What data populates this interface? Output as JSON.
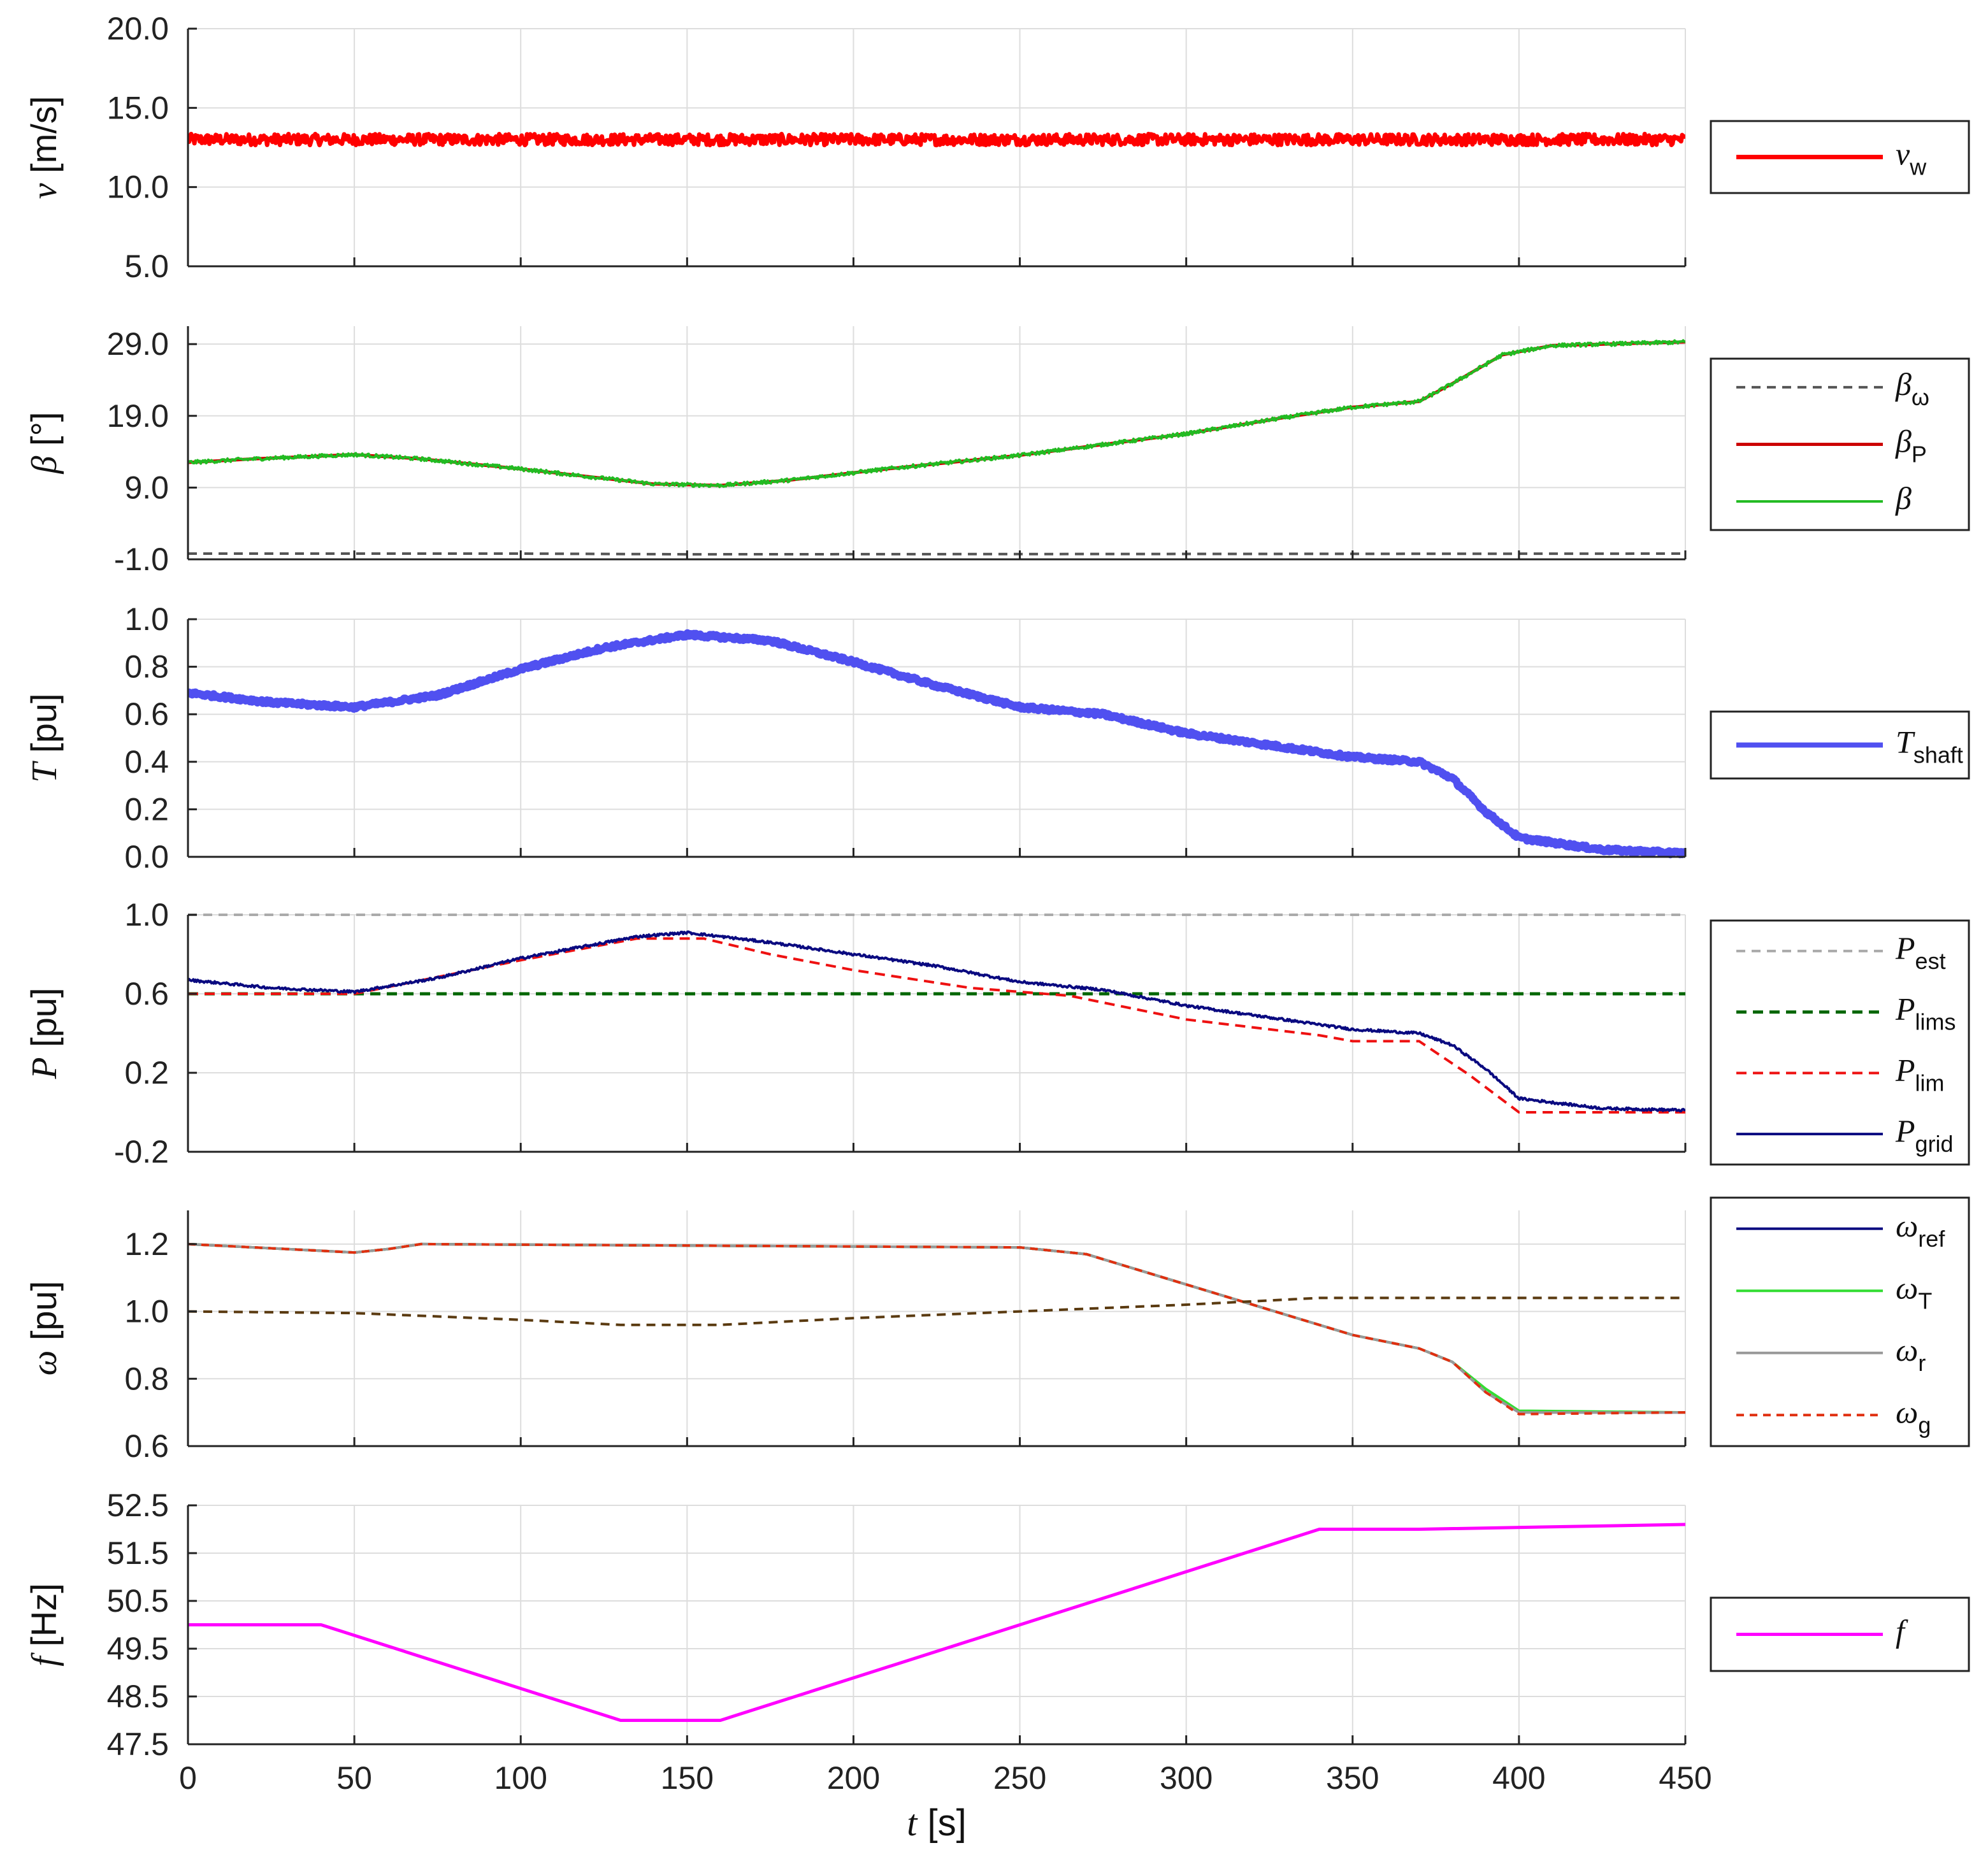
{
  "chart_data": {
    "type": "line",
    "x": {
      "label": "t",
      "unit": "[s]",
      "ticks": [
        0,
        50,
        100,
        150,
        200,
        250,
        300,
        350,
        400,
        450
      ],
      "lim": [
        0,
        450
      ]
    },
    "panels": [
      {
        "id": "wind",
        "ylabel": "v",
        "yunit": "[m/s]",
        "ylim": [
          5.0,
          20.0
        ],
        "yticks": [
          5.0,
          10.0,
          15.0,
          20.0
        ],
        "tick_decimals": 1,
        "series": [
          {
            "name": "v",
            "sub": "w",
            "color": "#ff0000",
            "width": 7,
            "dash": "",
            "noise": 0.35,
            "points": [
              [
                0,
                13.0
              ],
              [
                450,
                13.0
              ]
            ]
          }
        ]
      },
      {
        "id": "pitch",
        "ylabel": "β",
        "yunit": "[°]",
        "ylim": [
          -1.0,
          31.5
        ],
        "yticks": [
          -1.0,
          9.0,
          19.0,
          29.0
        ],
        "tick_decimals": 1,
        "series": [
          {
            "name": "β",
            "sub": "ω",
            "color": "#555555",
            "width": 4,
            "dash": "14,10",
            "noise": 0,
            "points": [
              [
                0,
                -0.2
              ],
              [
                100,
                -0.2
              ],
              [
                150,
                -0.3
              ],
              [
                450,
                -0.2
              ]
            ]
          },
          {
            "name": "β",
            "sub": "P",
            "color": "#cc0000",
            "width": 5,
            "dash": "",
            "noise": 0,
            "points": [
              [
                0,
                12.5
              ],
              [
                20,
                13.0
              ],
              [
                50,
                13.6
              ],
              [
                70,
                13.0
              ],
              [
                100,
                11.6
              ],
              [
                140,
                9.5
              ],
              [
                160,
                9.3
              ],
              [
                180,
                10.0
              ],
              [
                210,
                11.6
              ],
              [
                250,
                13.5
              ],
              [
                300,
                16.5
              ],
              [
                330,
                18.8
              ],
              [
                350,
                20.2
              ],
              [
                370,
                21.0
              ],
              [
                380,
                23.5
              ],
              [
                395,
                27.5
              ],
              [
                410,
                28.8
              ],
              [
                450,
                29.3
              ]
            ]
          },
          {
            "name": "β",
            "sub": "",
            "color": "#22bb22",
            "width": 4,
            "dash": "",
            "noise": 0.25,
            "points": [
              [
                0,
                12.5
              ],
              [
                20,
                13.0
              ],
              [
                50,
                13.6
              ],
              [
                70,
                13.0
              ],
              [
                100,
                11.6
              ],
              [
                140,
                9.5
              ],
              [
                160,
                9.3
              ],
              [
                180,
                10.0
              ],
              [
                210,
                11.6
              ],
              [
                250,
                13.5
              ],
              [
                300,
                16.5
              ],
              [
                330,
                18.8
              ],
              [
                350,
                20.2
              ],
              [
                370,
                21.0
              ],
              [
                380,
                23.5
              ],
              [
                395,
                27.5
              ],
              [
                410,
                28.8
              ],
              [
                450,
                29.3
              ]
            ]
          }
        ]
      },
      {
        "id": "torque",
        "ylabel": "T",
        "yunit": "[pu]",
        "ylim": [
          0.0,
          1.0
        ],
        "yticks": [
          0.0,
          0.2,
          0.4,
          0.6,
          0.8,
          1.0
        ],
        "tick_decimals": 1,
        "series": [
          {
            "name": "T",
            "sub": "shaft",
            "color": "#5050f0",
            "width": 12,
            "dash": "",
            "noise": 0.008,
            "points": [
              [
                0,
                0.69
              ],
              [
                25,
                0.65
              ],
              [
                50,
                0.63
              ],
              [
                75,
                0.68
              ],
              [
                100,
                0.79
              ],
              [
                125,
                0.88
              ],
              [
                150,
                0.935
              ],
              [
                175,
                0.91
              ],
              [
                200,
                0.82
              ],
              [
                225,
                0.72
              ],
              [
                250,
                0.63
              ],
              [
                275,
                0.6
              ],
              [
                300,
                0.52
              ],
              [
                325,
                0.47
              ],
              [
                350,
                0.42
              ],
              [
                370,
                0.4
              ],
              [
                380,
                0.33
              ],
              [
                390,
                0.19
              ],
              [
                400,
                0.08
              ],
              [
                425,
                0.03
              ],
              [
                450,
                0.015
              ]
            ]
          }
        ]
      },
      {
        "id": "power",
        "ylabel": "P",
        "yunit": "[pu]",
        "ylim": [
          -0.2,
          1.0
        ],
        "yticks": [
          -0.2,
          0.2,
          0.6,
          1.0
        ],
        "tick_decimals": 1,
        "series": [
          {
            "name": "P",
            "sub": "est",
            "color": "#aaaaaa",
            "width": 4,
            "dash": "14,10",
            "noise": 0,
            "points": [
              [
                0,
                1.0
              ],
              [
                450,
                1.0
              ]
            ]
          },
          {
            "name": "P",
            "sub": "lims",
            "color": "#006600",
            "width": 5,
            "dash": "16,10",
            "noise": 0,
            "points": [
              [
                0,
                0.6
              ],
              [
                450,
                0.6
              ]
            ]
          },
          {
            "name": "P",
            "sub": "lim",
            "color": "#ee1111",
            "width": 4,
            "dash": "16,10",
            "noise": 0,
            "points": [
              [
                0,
                0.6
              ],
              [
                50,
                0.6
              ],
              [
                100,
                0.77
              ],
              [
                135,
                0.88
              ],
              [
                155,
                0.88
              ],
              [
                175,
                0.8
              ],
              [
                200,
                0.72
              ],
              [
                235,
                0.63
              ],
              [
                265,
                0.59
              ],
              [
                300,
                0.47
              ],
              [
                340,
                0.39
              ],
              [
                350,
                0.36
              ],
              [
                370,
                0.36
              ],
              [
                385,
                0.19
              ],
              [
                400,
                0.0
              ],
              [
                450,
                0.0
              ]
            ]
          },
          {
            "name": "P",
            "sub": "grid",
            "color": "#0a0a80",
            "width": 4,
            "dash": "",
            "noise": 0.006,
            "points": [
              [
                0,
                0.67
              ],
              [
                25,
                0.63
              ],
              [
                50,
                0.61
              ],
              [
                75,
                0.68
              ],
              [
                100,
                0.78
              ],
              [
                135,
                0.89
              ],
              [
                150,
                0.91
              ],
              [
                175,
                0.86
              ],
              [
                200,
                0.8
              ],
              [
                225,
                0.74
              ],
              [
                250,
                0.66
              ],
              [
                275,
                0.62
              ],
              [
                300,
                0.54
              ],
              [
                325,
                0.48
              ],
              [
                350,
                0.42
              ],
              [
                370,
                0.4
              ],
              [
                380,
                0.34
              ],
              [
                390,
                0.22
              ],
              [
                400,
                0.07
              ],
              [
                425,
                0.02
              ],
              [
                450,
                0.01
              ]
            ]
          }
        ]
      },
      {
        "id": "speed",
        "ylabel": "ω",
        "yunit": "[pu]",
        "ylim": [
          0.6,
          1.3
        ],
        "yticks": [
          0.6,
          0.8,
          1.0,
          1.2
        ],
        "tick_decimals": 1,
        "series": [
          {
            "name": "ω",
            "sub": "ref",
            "color": "#0a0a80",
            "width": 4,
            "dash": "",
            "noise": 0,
            "points": [
              [
                0,
                1.2
              ],
              [
                40,
                1.18
              ],
              [
                50,
                1.175
              ],
              [
                60,
                1.185
              ],
              [
                70,
                1.2
              ],
              [
                250,
                1.19
              ],
              [
                270,
                1.17
              ],
              [
                300,
                1.08
              ],
              [
                330,
                0.99
              ],
              [
                350,
                0.93
              ],
              [
                370,
                0.89
              ],
              [
                380,
                0.85
              ],
              [
                390,
                0.76
              ],
              [
                400,
                0.7
              ],
              [
                450,
                0.7
              ]
            ]
          },
          {
            "name": "ω",
            "sub": "T",
            "color": "#33dd33",
            "width": 4,
            "dash": "",
            "noise": 0,
            "points": [
              [
                0,
                1.2
              ],
              [
                40,
                1.18
              ],
              [
                50,
                1.175
              ],
              [
                60,
                1.185
              ],
              [
                70,
                1.2
              ],
              [
                250,
                1.19
              ],
              [
                270,
                1.17
              ],
              [
                300,
                1.08
              ],
              [
                330,
                0.99
              ],
              [
                350,
                0.93
              ],
              [
                370,
                0.89
              ],
              [
                380,
                0.85
              ],
              [
                390,
                0.77
              ],
              [
                400,
                0.705
              ],
              [
                450,
                0.7
              ]
            ]
          },
          {
            "name": "ω",
            "sub": "r",
            "color": "#999999",
            "width": 4,
            "dash": "",
            "noise": 0,
            "points": [
              [
                0,
                1.2
              ],
              [
                40,
                1.18
              ],
              [
                50,
                1.175
              ],
              [
                60,
                1.185
              ],
              [
                70,
                1.2
              ],
              [
                250,
                1.19
              ],
              [
                270,
                1.17
              ],
              [
                300,
                1.08
              ],
              [
                330,
                0.99
              ],
              [
                350,
                0.93
              ],
              [
                370,
                0.89
              ],
              [
                380,
                0.85
              ],
              [
                390,
                0.76
              ],
              [
                400,
                0.7
              ],
              [
                450,
                0.7
              ]
            ]
          },
          {
            "name": "ω",
            "sub": "g",
            "color": "#e03010",
            "width": 4,
            "dash": "12,9",
            "noise": 0,
            "points": [
              [
                0,
                1.2
              ],
              [
                40,
                1.18
              ],
              [
                50,
                1.175
              ],
              [
                60,
                1.185
              ],
              [
                70,
                1.2
              ],
              [
                250,
                1.19
              ],
              [
                270,
                1.17
              ],
              [
                300,
                1.08
              ],
              [
                330,
                0.99
              ],
              [
                350,
                0.93
              ],
              [
                370,
                0.89
              ],
              [
                380,
                0.85
              ],
              [
                390,
                0.76
              ],
              [
                400,
                0.695
              ],
              [
                450,
                0.7
              ]
            ]
          },
          {
            "name": "",
            "sub": "",
            "color": "#5a3a10",
            "width": 4,
            "dash": "14,10",
            "noise": 0,
            "legend": false,
            "points": [
              [
                0,
                1.0
              ],
              [
                50,
                0.995
              ],
              [
                100,
                0.975
              ],
              [
                130,
                0.96
              ],
              [
                160,
                0.96
              ],
              [
                200,
                0.98
              ],
              [
                250,
                1.0
              ],
              [
                300,
                1.02
              ],
              [
                340,
                1.04
              ],
              [
                450,
                1.04
              ]
            ]
          }
        ]
      },
      {
        "id": "freq",
        "ylabel": "f",
        "yunit": "[Hz]",
        "ylim": [
          47.5,
          52.5
        ],
        "yticks": [
          47.5,
          48.5,
          49.5,
          50.5,
          51.5,
          52.5
        ],
        "tick_decimals": 1,
        "series": [
          {
            "name": "f",
            "sub": "",
            "color": "#ff00ff",
            "width": 5,
            "dash": "",
            "noise": 0,
            "points": [
              [
                0,
                50.0
              ],
              [
                40,
                50.0
              ],
              [
                130,
                48.0
              ],
              [
                160,
                48.0
              ],
              [
                340,
                52.0
              ],
              [
                370,
                52.0
              ],
              [
                450,
                52.1
              ]
            ]
          }
        ]
      }
    ]
  }
}
